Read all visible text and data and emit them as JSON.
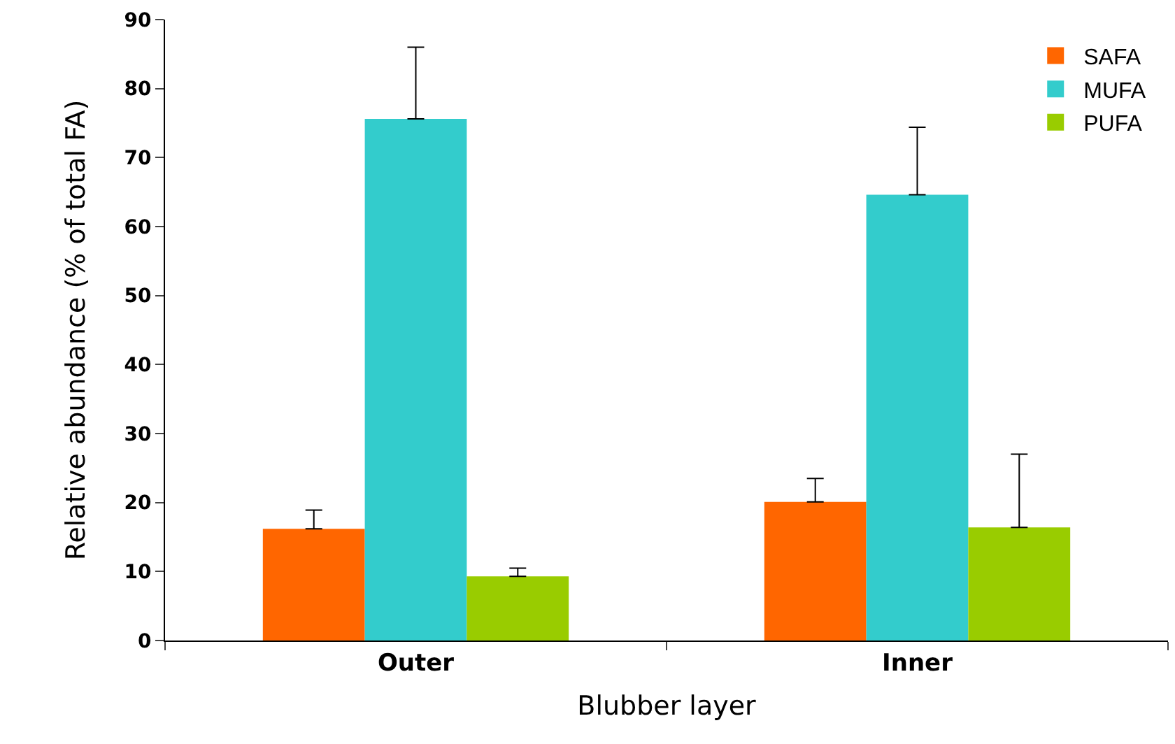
{
  "chart_data": {
    "type": "bar",
    "xlabel": "Blubber layer",
    "ylabel": "Relative abundance (% of total FA)",
    "categories": [
      "Outer",
      "Inner"
    ],
    "series": [
      {
        "name": "SAFA",
        "color": "#ff6600",
        "values": [
          16.2,
          20.1
        ],
        "errors": [
          [
            16.2,
            18.9
          ],
          [
            20.1,
            23.5
          ]
        ]
      },
      {
        "name": "MUFA",
        "color": "#33cccc",
        "values": [
          75.6,
          64.6
        ],
        "errors": [
          [
            75.6,
            86
          ],
          [
            64.6,
            74.4
          ]
        ]
      },
      {
        "name": "PUFA",
        "color": "#99cc00",
        "values": [
          9.3,
          16.4
        ],
        "errors": [
          [
            9.3,
            10.5
          ],
          [
            16.4,
            27
          ]
        ]
      }
    ],
    "ylim": [
      0,
      90
    ],
    "yticks": [
      0,
      10,
      20,
      30,
      40,
      50,
      60,
      70,
      80,
      90
    ],
    "grid": false,
    "legend": "top right"
  }
}
